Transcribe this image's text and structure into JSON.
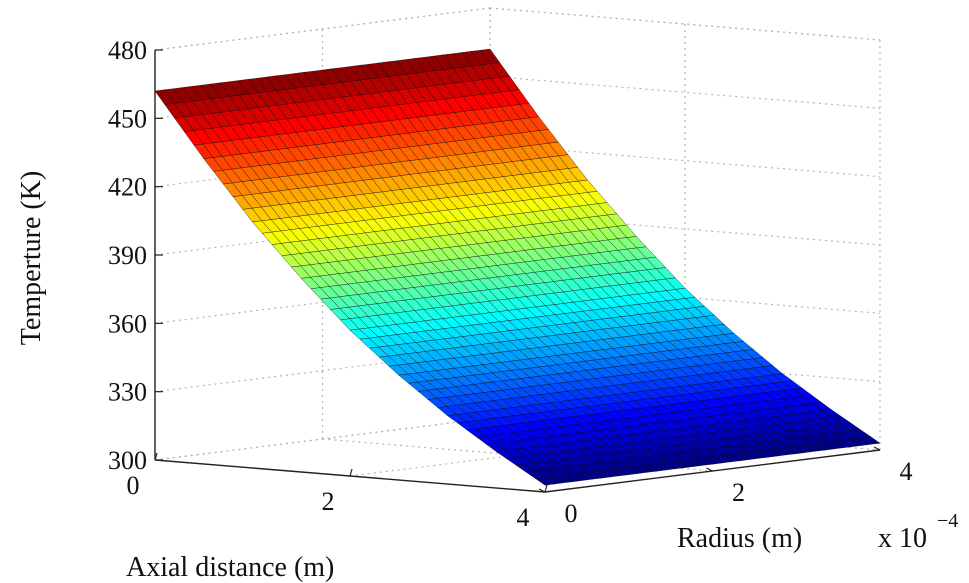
{
  "chart_data": {
    "type": "surface",
    "title": "",
    "axes": {
      "axial": {
        "label": "Axial distance (m)",
        "range": [
          0,
          4
        ],
        "ticks": [
          "0",
          "2",
          "4"
        ]
      },
      "radius": {
        "label": "Radius (m)",
        "range": [
          0,
          4
        ],
        "ticks": [
          "0",
          "2",
          "4"
        ],
        "scale_label": "x 10",
        "scale_exponent": "−4"
      },
      "temperature": {
        "label": "Temperture (K)",
        "range": [
          300,
          480
        ],
        "ticks": [
          "300",
          "330",
          "360",
          "390",
          "420",
          "450",
          "480"
        ]
      }
    },
    "colormap": "jet",
    "grid": true,
    "surface": {
      "description_values": "temperature vs axial distance (m) and radius (x 10^-4 m)",
      "corners": [
        {
          "axial": 0,
          "radius": 0,
          "temperature": 462
        },
        {
          "axial": 0,
          "radius": 4,
          "temperature": 462
        },
        {
          "axial": 4,
          "radius": 0,
          "temperature": 303
        },
        {
          "axial": 4,
          "radius": 4,
          "temperature": 303
        }
      ],
      "profile_along_axial": {
        "axial": [
          0,
          0.5,
          1,
          1.5,
          2,
          2.5,
          3,
          3.5,
          4
        ],
        "temperature": [
          462,
          434,
          408,
          385,
          364,
          346,
          330,
          316,
          303
        ]
      }
    }
  }
}
